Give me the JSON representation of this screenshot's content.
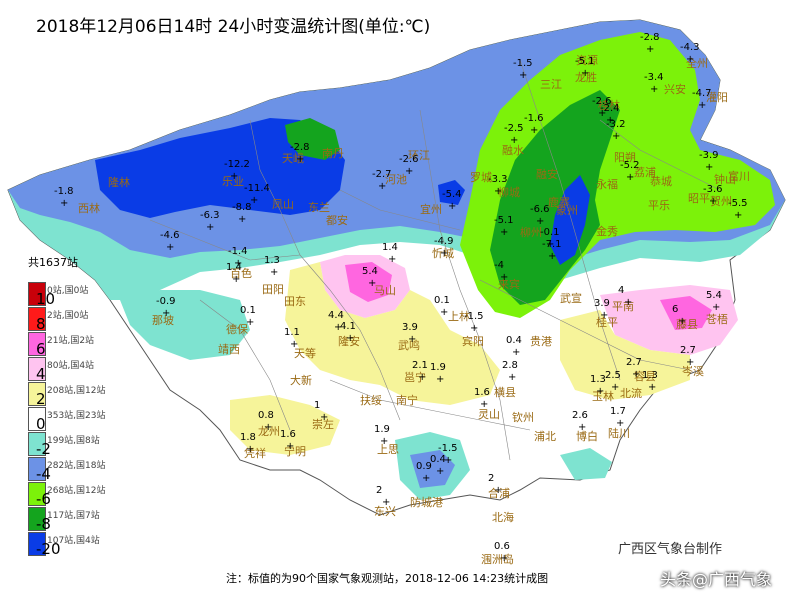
{
  "title": "2018年12月06日14时 24小时变温统计图(单位:℃)",
  "legend": {
    "total": "共1637站",
    "bands": [
      {
        "range": "10",
        "count": "0站,国0站",
        "color": "#c8000a"
      },
      {
        "range": "8",
        "count": "2站,国0站",
        "color": "#ff1a1a"
      },
      {
        "range": "6",
        "count": "21站,国2站",
        "color": "#ff66e0"
      },
      {
        "range": "4",
        "count": "80站,国4站",
        "color": "#ffc4f0"
      },
      {
        "range": "2",
        "count": "208站,国12站",
        "color": "#f6f49a"
      },
      {
        "range": "0",
        "count": "353站,国23站",
        "color": "#ffffff"
      },
      {
        "range": "-2",
        "count": "199站,国8站",
        "color": "#7ee3d0"
      },
      {
        "range": "-4",
        "count": "282站,国18站",
        "color": "#6c92e6"
      },
      {
        "range": "-6",
        "count": "268站,国12站",
        "color": "#7cf20a"
      },
      {
        "range": "-8",
        "count": "117站,国7站",
        "color": "#14a41e"
      },
      {
        "range": "-20",
        "count": "107站,国4站",
        "color": "#0a3ce6"
      }
    ],
    "edges": [
      "10",
      "8",
      "6",
      "4",
      "2",
      "0",
      "-2",
      "-4",
      "-6",
      "-8",
      "-20"
    ]
  },
  "places": [
    {
      "name": "隆林"
    },
    {
      "name": "西林"
    },
    {
      "name": "乐业"
    },
    {
      "name": "天峨"
    },
    {
      "name": "南丹"
    },
    {
      "name": "凤山"
    },
    {
      "name": "东兰"
    },
    {
      "name": "河池"
    },
    {
      "name": "宜州"
    },
    {
      "name": "环江"
    },
    {
      "name": "罗城"
    },
    {
      "name": "融水"
    },
    {
      "name": "三江"
    },
    {
      "name": "龙胜"
    },
    {
      "name": "融安"
    },
    {
      "name": "柳城"
    },
    {
      "name": "鹿寨"
    },
    {
      "name": "柳州"
    },
    {
      "name": "象州"
    },
    {
      "name": "金秀"
    },
    {
      "name": "武宣"
    },
    {
      "name": "来宾"
    },
    {
      "name": "忻城"
    },
    {
      "name": "都安"
    },
    {
      "name": "马山"
    },
    {
      "name": "百色"
    },
    {
      "name": "田阳"
    },
    {
      "name": "田东"
    },
    {
      "name": "那坡"
    },
    {
      "name": "德保"
    },
    {
      "name": "靖西"
    },
    {
      "name": "天等"
    },
    {
      "name": "隆安"
    },
    {
      "name": "武鸣"
    },
    {
      "name": "上林"
    },
    {
      "name": "宾阳"
    },
    {
      "name": "大新"
    },
    {
      "name": "崇左"
    },
    {
      "name": "龙州"
    },
    {
      "name": "凭祥"
    },
    {
      "name": "宁明"
    },
    {
      "name": "扶绥"
    },
    {
      "name": "南宁"
    },
    {
      "name": "邕宁"
    },
    {
      "name": "横县"
    },
    {
      "name": "贵港"
    },
    {
      "name": "桂平"
    },
    {
      "name": "平南"
    },
    {
      "name": "藤县"
    },
    {
      "name": "苍梧"
    },
    {
      "name": "岑溪"
    },
    {
      "name": "容县"
    },
    {
      "name": "北流"
    },
    {
      "name": "玉林"
    },
    {
      "name": "陆川"
    },
    {
      "name": "博白"
    },
    {
      "name": "浦北"
    },
    {
      "name": "灵山"
    },
    {
      "name": "钦州"
    },
    {
      "name": "上思"
    },
    {
      "name": "防城港"
    },
    {
      "name": "东兴"
    },
    {
      "name": "合浦"
    },
    {
      "name": "北海"
    },
    {
      "name": "涠洲岛"
    },
    {
      "name": "全州"
    },
    {
      "name": "兴安"
    },
    {
      "name": "灌阳"
    },
    {
      "name": "资源"
    },
    {
      "name": "桂林"
    },
    {
      "name": "阳朔"
    },
    {
      "name": "恭城"
    },
    {
      "name": "平乐"
    },
    {
      "name": "荔浦"
    },
    {
      "name": "永福"
    },
    {
      "name": "钟山"
    },
    {
      "name": "富川"
    },
    {
      "name": "贺州"
    },
    {
      "name": "昭平"
    }
  ],
  "station_values": [
    "-2.8",
    "-4.3",
    "-1.5",
    "-5.1",
    "-3.4",
    "-4.7",
    "-2.6",
    "-2.4",
    "-3.2",
    "-1.6",
    "-2.5",
    "-3.9",
    "-5.2",
    "-3.6",
    "-5.5",
    "-1.8",
    "-12.2",
    "-11.4",
    "-8.8",
    "-6.3",
    "-4.6",
    "-2.8",
    "-2.7",
    "-2.6",
    "-5.4",
    "-3.3",
    "-5.1",
    "-6.6",
    "-4.9",
    "-7.1",
    "-4",
    "-1.4",
    "-0.9",
    "1.4",
    "1.3",
    "1.4",
    "5.4",
    "0.1",
    "0.1",
    "4.4",
    "4.1",
    "3.9",
    "-1.5",
    "1.1",
    "2.1",
    "1.9",
    "0.4",
    "2.8",
    "3.9",
    "4",
    "6",
    "5.4",
    "2.7",
    "2.7",
    "1.3",
    "2.5",
    "1.3",
    "0.8",
    "1.8",
    "1.6",
    "1",
    "1.9",
    "1.6",
    "2.6",
    "1.7",
    "-1.5",
    "0.9",
    "0.4",
    "2",
    "2",
    "0.6",
    "-0.1"
  ],
  "maker": "广西区气象台制作",
  "footnote": "注：标值的为90个国家气象观测站，2018-12-06 14:23统计成图",
  "watermark": "头条@广西气象"
}
